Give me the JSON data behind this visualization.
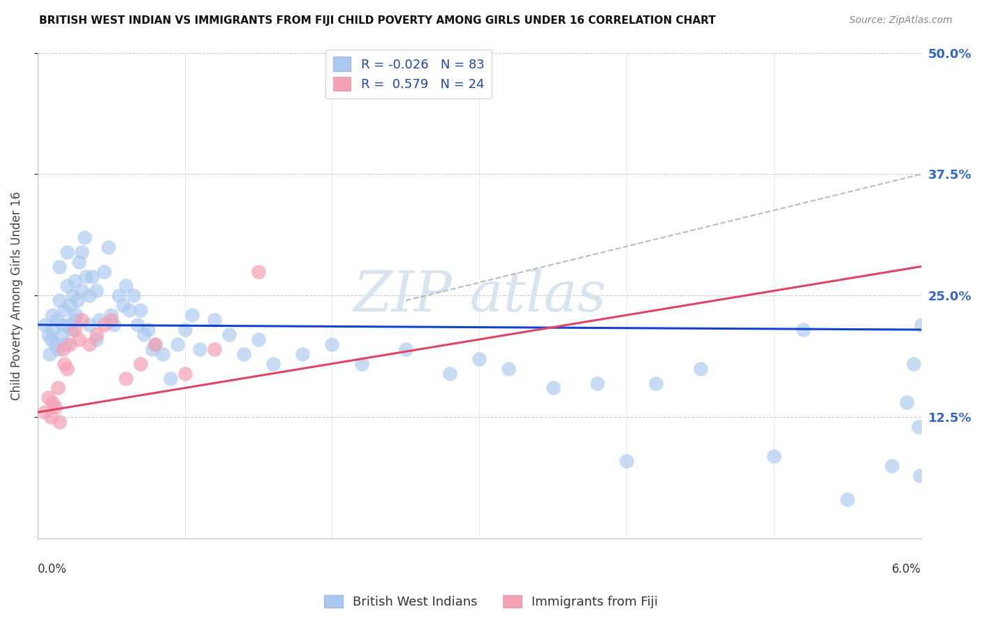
{
  "title": "BRITISH WEST INDIAN VS IMMIGRANTS FROM FIJI CHILD POVERTY AMONG GIRLS UNDER 16 CORRELATION CHART",
  "source": "Source: ZipAtlas.com",
  "ylabel": "Child Poverty Among Girls Under 16",
  "legend1_r": "-0.026",
  "legend1_n": "83",
  "legend2_r": "0.579",
  "legend2_n": "24",
  "blue_color": "#aac8f0",
  "pink_color": "#f4a0b4",
  "line_blue": "#1144cc",
  "line_pink": "#dd4466",
  "line_dashed_color": "#bbbbbb",
  "watermark_color": "#d8e4f0",
  "xlim": [
    0.0,
    6.0
  ],
  "ylim": [
    0.0,
    50.0
  ],
  "y_tick_vals": [
    12.5,
    25.0,
    37.5,
    50.0
  ],
  "blue_line_y0": 22.0,
  "blue_line_y1": 21.5,
  "pink_line_y0": 13.0,
  "pink_line_y1": 28.0,
  "dash_x0": 2.5,
  "dash_y0": 24.5,
  "dash_x1": 6.0,
  "dash_y1": 37.5,
  "blue_x": [
    0.05,
    0.07,
    0.08,
    0.09,
    0.1,
    0.1,
    0.12,
    0.13,
    0.14,
    0.15,
    0.15,
    0.16,
    0.17,
    0.18,
    0.19,
    0.2,
    0.2,
    0.21,
    0.22,
    0.23,
    0.24,
    0.25,
    0.25,
    0.26,
    0.27,
    0.28,
    0.3,
    0.3,
    0.32,
    0.33,
    0.35,
    0.35,
    0.37,
    0.4,
    0.4,
    0.42,
    0.45,
    0.48,
    0.5,
    0.52,
    0.55,
    0.58,
    0.6,
    0.62,
    0.65,
    0.68,
    0.7,
    0.72,
    0.75,
    0.78,
    0.8,
    0.85,
    0.9,
    0.95,
    1.0,
    1.05,
    1.1,
    1.2,
    1.3,
    1.4,
    1.5,
    1.6,
    1.8,
    2.0,
    2.2,
    2.5,
    2.8,
    3.0,
    3.2,
    3.5,
    3.8,
    4.0,
    4.2,
    4.5,
    5.0,
    5.2,
    5.5,
    5.8,
    5.9,
    5.95,
    5.98,
    5.99,
    6.0
  ],
  "blue_y": [
    22.0,
    21.0,
    19.0,
    20.5,
    23.0,
    21.5,
    20.0,
    22.5,
    19.5,
    28.0,
    24.5,
    21.0,
    22.0,
    23.5,
    20.0,
    29.5,
    26.0,
    22.0,
    24.0,
    21.5,
    25.0,
    26.5,
    22.5,
    23.0,
    24.5,
    28.5,
    29.5,
    25.5,
    31.0,
    27.0,
    25.0,
    22.0,
    27.0,
    20.5,
    25.5,
    22.5,
    27.5,
    30.0,
    23.0,
    22.0,
    25.0,
    24.0,
    26.0,
    23.5,
    25.0,
    22.0,
    23.5,
    21.0,
    21.5,
    19.5,
    20.0,
    19.0,
    16.5,
    20.0,
    21.5,
    23.0,
    19.5,
    22.5,
    21.0,
    19.0,
    20.5,
    18.0,
    19.0,
    20.0,
    18.0,
    19.5,
    17.0,
    18.5,
    17.5,
    15.5,
    16.0,
    8.0,
    16.0,
    17.5,
    8.5,
    21.5,
    4.0,
    7.5,
    14.0,
    18.0,
    11.5,
    6.5,
    22.0
  ],
  "pink_x": [
    0.05,
    0.07,
    0.09,
    0.1,
    0.12,
    0.14,
    0.15,
    0.17,
    0.18,
    0.2,
    0.22,
    0.25,
    0.28,
    0.3,
    0.35,
    0.4,
    0.45,
    0.5,
    0.6,
    0.7,
    0.8,
    1.0,
    1.2,
    1.5
  ],
  "pink_y": [
    13.0,
    14.5,
    12.5,
    14.0,
    13.5,
    15.5,
    12.0,
    19.5,
    18.0,
    17.5,
    20.0,
    21.5,
    20.5,
    22.5,
    20.0,
    21.0,
    22.0,
    22.5,
    16.5,
    18.0,
    20.0,
    17.0,
    19.5,
    27.5
  ]
}
